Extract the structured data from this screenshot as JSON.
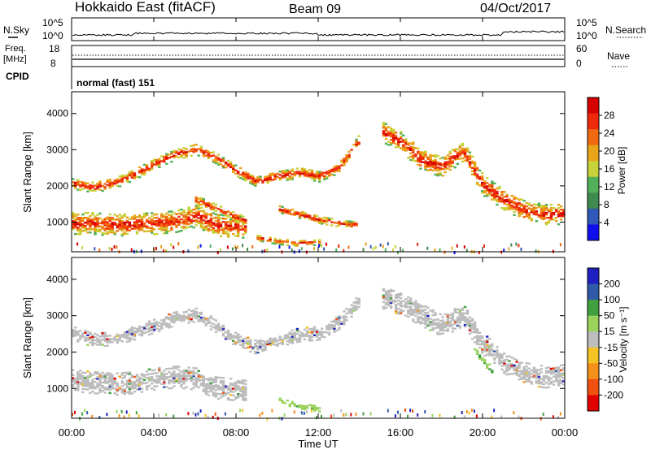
{
  "header": {
    "station": "Hokkaido East (fitACF)",
    "beam": "Beam 09",
    "date": "04/Oct/2017"
  },
  "top_panels": {
    "nsky_label": "N.Sky",
    "nsky_ticks": [
      "10^5",
      "10^0"
    ],
    "nsearch_label": "N.Search",
    "freq_label_line1": "Freq.",
    "freq_label_line2": "[MHz]",
    "freq_ticks": [
      "18",
      "8"
    ],
    "nave_label": "Nave",
    "nave_ticks": [
      "60",
      "0"
    ],
    "cpid_label": "CPID",
    "cpid_text": "normal (fast) 151"
  },
  "colors": {
    "power_scale": [
      "#1010ee",
      "#2f58b8",
      "#3f8a4f",
      "#52b05b",
      "#c7d23a",
      "#e8a51a",
      "#f16a12",
      "#ee2a0a",
      "#d60000"
    ],
    "velocity_scale": [
      "#e00000",
      "#f05010",
      "#f5901a",
      "#f3c423",
      "#bdbdbd",
      "#9ad35c",
      "#40a040",
      "#305aa8",
      "#2020c0"
    ],
    "ground_scatter": "#bdbdbd"
  },
  "chart_data": [
    {
      "type": "heatmap",
      "name": "power",
      "ylabel": "Slant Range [km]",
      "xlabel": "Time UT",
      "x_ticks": [
        "00:00",
        "04:00",
        "08:00",
        "12:00",
        "16:00",
        "20:00",
        "00:00"
      ],
      "x_range_hours": [
        0,
        24
      ],
      "y_ticks": [
        "1000",
        "2000",
        "3000",
        "4000"
      ],
      "y_range_km": [
        180,
        4600
      ],
      "colorbar": {
        "label": "Power [dB]",
        "ticks": [
          "28",
          "24",
          "20",
          "16",
          "12",
          "8",
          "4"
        ],
        "range": [
          0,
          32
        ]
      },
      "bands": [
        {
          "kind": "ionospheric",
          "points": [
            [
              0.0,
              950
            ],
            [
              1.0,
              950
            ],
            [
              2.0,
              900
            ],
            [
              3.0,
              920
            ],
            [
              4.0,
              950
            ],
            [
              5.0,
              1000
            ],
            [
              6.0,
              1150
            ],
            [
              7.0,
              900
            ],
            [
              8.0,
              850
            ],
            [
              8.5,
              850
            ]
          ],
          "half_width_km": 300
        },
        {
          "kind": "ionospheric",
          "points": [
            [
              0.0,
              2050
            ],
            [
              1.0,
              1950
            ],
            [
              2.0,
              2050
            ],
            [
              3.0,
              2300
            ],
            [
              4.0,
              2600
            ],
            [
              5.0,
              2850
            ],
            [
              6.0,
              3000
            ],
            [
              7.0,
              2750
            ],
            [
              8.0,
              2400
            ],
            [
              9.0,
              2100
            ],
            [
              10.0,
              2250
            ],
            [
              11.0,
              2350
            ],
            [
              12.0,
              2250
            ],
            [
              13.0,
              2500
            ],
            [
              14.0,
              3300
            ]
          ],
          "half_width_km": 150
        },
        {
          "kind": "ionospheric",
          "points": [
            [
              15.0,
              3500
            ],
            [
              16.0,
              3200
            ],
            [
              17.0,
              2700
            ],
            [
              18.0,
              2500
            ],
            [
              19.0,
              2950
            ],
            [
              20.0,
              2000
            ],
            [
              21.0,
              1600
            ],
            [
              22.0,
              1300
            ],
            [
              23.0,
              1200
            ],
            [
              24.0,
              1200
            ]
          ],
          "half_width_km": 280
        },
        {
          "kind": "ionospheric",
          "points": [
            [
              6.0,
              1600
            ],
            [
              7.0,
              1350
            ],
            [
              8.0,
              1100
            ],
            [
              8.5,
              1000
            ]
          ],
          "half_width_km": 120
        },
        {
          "kind": "ionospheric",
          "points": [
            [
              10.0,
              1350
            ],
            [
              11.0,
              1200
            ],
            [
              12.0,
              1050
            ],
            [
              13.0,
              950
            ],
            [
              13.8,
              900
            ]
          ],
          "half_width_km": 100
        },
        {
          "kind": "ionospheric",
          "points": [
            [
              9.0,
              550
            ],
            [
              10.0,
              450
            ],
            [
              11.0,
              400
            ],
            [
              12.0,
              430
            ]
          ],
          "half_width_km": 80
        }
      ]
    },
    {
      "type": "heatmap",
      "name": "velocity",
      "ylabel": "Slant Range [km]",
      "xlabel": "Time UT",
      "x_ticks": [
        "00:00",
        "04:00",
        "08:00",
        "12:00",
        "16:00",
        "20:00",
        "00:00"
      ],
      "x_range_hours": [
        0,
        24
      ],
      "y_ticks": [
        "1000",
        "2000",
        "3000",
        "4000"
      ],
      "y_range_km": [
        180,
        4600
      ],
      "colorbar": {
        "label": "Velocity [m s⁻¹]",
        "ticks": [
          "200",
          "100",
          "50",
          "15",
          "-15",
          "-50",
          "-100",
          "-200"
        ],
        "range": [
          -250,
          250
        ]
      },
      "bands": [
        {
          "kind": "ground_scatter",
          "points": [
            [
              0.0,
              1200
            ],
            [
              1.0,
              1150
            ],
            [
              2.0,
              1100
            ],
            [
              3.0,
              1150
            ],
            [
              4.0,
              1250
            ],
            [
              5.0,
              1300
            ],
            [
              6.0,
              1250
            ],
            [
              7.0,
              1000
            ],
            [
              8.0,
              950
            ],
            [
              8.5,
              900
            ]
          ],
          "half_width_km": 300
        },
        {
          "kind": "ground_scatter",
          "points": [
            [
              0.0,
              2500
            ],
            [
              1.0,
              2300
            ],
            [
              2.0,
              2350
            ],
            [
              3.0,
              2500
            ],
            [
              4.0,
              2700
            ],
            [
              5.0,
              2900
            ],
            [
              6.0,
              3000
            ],
            [
              7.0,
              2700
            ],
            [
              8.0,
              2300
            ],
            [
              9.0,
              2100
            ],
            [
              10.0,
              2300
            ],
            [
              11.0,
              2450
            ],
            [
              12.0,
              2500
            ],
            [
              13.0,
              2800
            ],
            [
              14.0,
              3400
            ]
          ],
          "half_width_km": 180
        },
        {
          "kind": "ground_scatter",
          "points": [
            [
              15.0,
              3500
            ],
            [
              16.0,
              3300
            ],
            [
              17.0,
              3000
            ],
            [
              18.0,
              2700
            ],
            [
              19.0,
              3000
            ],
            [
              20.0,
              2200
            ],
            [
              21.0,
              1700
            ],
            [
              22.0,
              1400
            ],
            [
              23.0,
              1300
            ],
            [
              24.0,
              1400
            ]
          ],
          "half_width_km": 300
        },
        {
          "kind": "flow_positive",
          "points": [
            [
              10.0,
              650
            ],
            [
              11.0,
              500
            ],
            [
              12.0,
              420
            ]
          ],
          "half_width_km": 70
        },
        {
          "kind": "flow_positive",
          "points": [
            [
              19.5,
              2100
            ],
            [
              20.0,
              1750
            ],
            [
              20.5,
              1400
            ]
          ],
          "half_width_km": 90
        }
      ]
    }
  ]
}
